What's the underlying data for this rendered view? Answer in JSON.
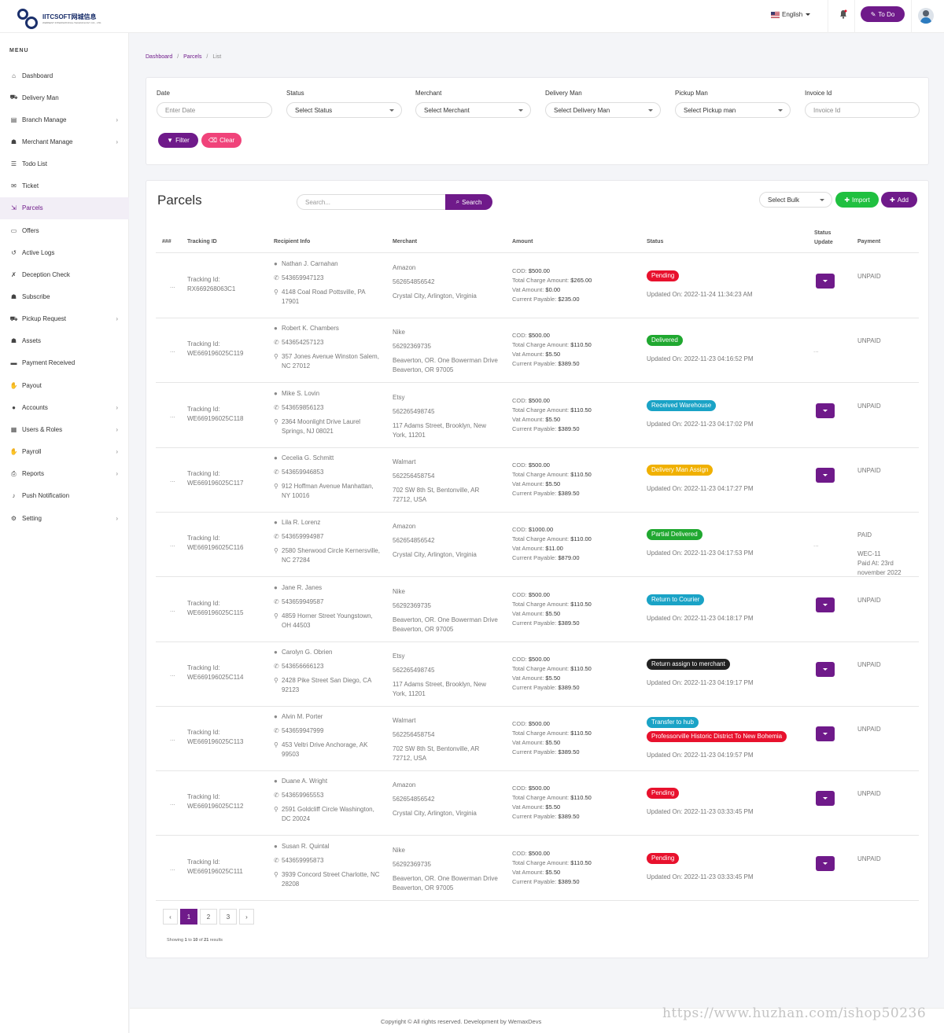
{
  "header": {
    "logo_name": "IITCSOFT网城信息",
    "logo_sub": "WEBNEST INTERNATIONAL TECHNOLOGY CO., LTD.",
    "language": "English",
    "todo_label": "To Do"
  },
  "sidebar": {
    "menu_label": "MENU",
    "items": [
      {
        "label": "Dashboard",
        "icon": "home-icon",
        "glyph": "⌂",
        "arrow": false
      },
      {
        "label": "Delivery Man",
        "icon": "delivery-man-icon",
        "glyph": "⛟",
        "arrow": false
      },
      {
        "label": "Branch Manage",
        "icon": "building-icon",
        "glyph": "▤",
        "arrow": true
      },
      {
        "label": "Merchant Manage",
        "icon": "users-icon",
        "glyph": "☗",
        "arrow": true
      },
      {
        "label": "Todo List",
        "icon": "list-icon",
        "glyph": "☰",
        "arrow": false
      },
      {
        "label": "Ticket",
        "icon": "comments-icon",
        "glyph": "✉",
        "arrow": false
      },
      {
        "label": "Parcels",
        "icon": "dolly-icon",
        "glyph": "⇲",
        "arrow": false
      },
      {
        "label": "Offers",
        "icon": "offer-icon",
        "glyph": "▭",
        "arrow": false
      },
      {
        "label": "Active Logs",
        "icon": "history-icon",
        "glyph": "↺",
        "arrow": false
      },
      {
        "label": "Deception Check",
        "icon": "user-times-icon",
        "glyph": "✗",
        "arrow": false
      },
      {
        "label": "Subscribe",
        "icon": "users-group-icon",
        "glyph": "☗",
        "arrow": false
      },
      {
        "label": "Pickup Request",
        "icon": "truck-icon",
        "glyph": "⛟",
        "arrow": true
      },
      {
        "label": "Assets",
        "icon": "users-group-icon",
        "glyph": "☗",
        "arrow": false
      },
      {
        "label": "Payment Received",
        "icon": "payment-icon",
        "glyph": "▬",
        "arrow": false
      },
      {
        "label": "Payout",
        "icon": "hand-coin-icon",
        "glyph": "✋",
        "arrow": false
      },
      {
        "label": "Accounts",
        "icon": "user-icon",
        "glyph": "●",
        "arrow": true
      },
      {
        "label": "Users & Roles",
        "icon": "grid-icon",
        "glyph": "▦",
        "arrow": true
      },
      {
        "label": "Payroll",
        "icon": "hand-coin-icon",
        "glyph": "✋",
        "arrow": true
      },
      {
        "label": "Reports",
        "icon": "print-icon",
        "glyph": "⎙",
        "arrow": true
      },
      {
        "label": "Push Notification",
        "icon": "bell-icon",
        "glyph": "♪",
        "arrow": false
      },
      {
        "label": "Setting",
        "icon": "cogs-icon",
        "glyph": "⚙",
        "arrow": true
      }
    ]
  },
  "breadcrumb": {
    "dashboard": "Dashboard",
    "parcels": "Parcels",
    "list": "List"
  },
  "filters": {
    "date_label": "Date",
    "date_placeholder": "Enter Date",
    "status_label": "Status",
    "status_value": "Select Status",
    "merchant_label": "Merchant",
    "merchant_value": "Select Merchant",
    "delivery_label": "Delivery Man",
    "delivery_value": "Select Delivery Man",
    "pickup_label": "Pickup Man",
    "pickup_value": "Select Pickup man",
    "invoice_label": "Invoice Id",
    "invoice_placeholder": "Invoice Id",
    "filter_btn": "Filter",
    "clear_btn": "Clear"
  },
  "list": {
    "title": "Parcels",
    "search_placeholder": "Search...",
    "search_btn": "Search",
    "bulk_value": "Select Bulk",
    "import_btn": "Import",
    "add_btn": "Add",
    "columns": {
      "num": "###",
      "tracking": "Tracking ID",
      "recipient": "Recipient Info",
      "merchant": "Merchant",
      "amount": "Amount",
      "status": "Status",
      "status_update_1": "Status",
      "status_update_2": "Update",
      "payment": "Payment"
    }
  },
  "labels": {
    "tracking_id": "Tracking Id:",
    "cod": "COD:",
    "total_charge": "Total Charge Amount:",
    "vat": "Vat Amount:",
    "current_payable": "Current Payable:",
    "updated_on": "Updated On:",
    "dots": "...",
    "paid_at": "Paid At:"
  },
  "rows": [
    {
      "tracking": "RX669268063C1",
      "name": "Nathan J. Carnahan",
      "phone": "543659947123",
      "addr1": "4148 Coal Road Pottsville, PA",
      "addr2": "17901",
      "m_name": "Amazon",
      "m_phone": "562654856542",
      "m_addr1": "Crystal City, Arlington, Virginia",
      "m_addr2": "",
      "cod": "$500.00",
      "charge": "$265.00",
      "vat": "$0.00",
      "payable": "$235.00",
      "badges": [
        {
          "text": "Pending",
          "color": "#e8112d"
        }
      ],
      "updated": "2022-11-24 11:34:23 AM",
      "update_btn": true,
      "payment": "UNPAID",
      "pay2": "",
      "pay3": "",
      "pay4": ""
    },
    {
      "tracking": "WE669196025C119",
      "name": "Robert K. Chambers",
      "phone": "543654257123",
      "addr1": "357 Jones Avenue Winston Salem,",
      "addr2": "NC 27012",
      "m_name": "Nike",
      "m_phone": "56292369735",
      "m_addr1": "Beaverton, OR. One Bowerman Drive",
      "m_addr2": "Beaverton, OR 97005",
      "cod": "$500.00",
      "charge": "$110.50",
      "vat": "$5.50",
      "payable": "$389.50",
      "badges": [
        {
          "text": "Delivered",
          "color": "#20a830"
        }
      ],
      "updated": "2022-11-23 04:16:52 PM",
      "update_btn": false,
      "payment": "UNPAID",
      "pay2": "",
      "pay3": "",
      "pay4": ""
    },
    {
      "tracking": "WE669196025C118",
      "name": "Mike S. Lovin",
      "phone": "543659856123",
      "addr1": "2364 Moonlight Drive Laurel",
      "addr2": "Springs, NJ 08021",
      "m_name": "Etsy",
      "m_phone": "562265498745",
      "m_addr1": "117 Adams Street, Brooklyn, New",
      "m_addr2": "York, 11201",
      "cod": "$500.00",
      "charge": "$110.50",
      "vat": "$5.50",
      "payable": "$389.50",
      "badges": [
        {
          "text": "Received Warehouse",
          "color": "#1aa3c6"
        }
      ],
      "updated": "2022-11-23 04:17:02 PM",
      "update_btn": true,
      "payment": "UNPAID",
      "pay2": "",
      "pay3": "",
      "pay4": ""
    },
    {
      "tracking": "WE669196025C117",
      "name": "Cecelia G. Schmitt",
      "phone": "543659946853",
      "addr1": "912 Hoffman Avenue Manhattan,",
      "addr2": "NY 10016",
      "m_name": "Walmart",
      "m_phone": "562256458754",
      "m_addr1": "702 SW 8th St, Bentonville, AR",
      "m_addr2": "72712, USA",
      "cod": "$500.00",
      "charge": "$110.50",
      "vat": "$5.50",
      "payable": "$389.50",
      "badges": [
        {
          "text": "Delivery Man Assign",
          "color": "#f0b000"
        }
      ],
      "updated": "2022-11-23 04:17:27 PM",
      "update_btn": true,
      "payment": "UNPAID",
      "pay2": "",
      "pay3": "",
      "pay4": ""
    },
    {
      "tracking": "WE669196025C116",
      "name": "Lila R. Lorenz",
      "phone": "543659994987",
      "addr1": "2580 Sherwood Circle Kernersville,",
      "addr2": "NC 27284",
      "m_name": "Amazon",
      "m_phone": "562654856542",
      "m_addr1": "Crystal City, Arlington, Virginia",
      "m_addr2": "",
      "cod": "$1000.00",
      "charge": "$110.00",
      "vat": "$11.00",
      "payable": "$879.00",
      "badges": [
        {
          "text": "Partial Delivered",
          "color": "#20a830"
        }
      ],
      "updated": "2022-11-23 04:17:53 PM",
      "update_btn": false,
      "payment": "PAID",
      "pay2": "WEC-11",
      "pay3": "23rd",
      "pay4": "november 2022"
    },
    {
      "tracking": "WE669196025C115",
      "name": "Jane R. Janes",
      "phone": "543659949587",
      "addr1": "4859 Horner Street Youngstown,",
      "addr2": "OH 44503",
      "m_name": "Nike",
      "m_phone": "56292369735",
      "m_addr1": "Beaverton, OR. One Bowerman Drive",
      "m_addr2": "Beaverton, OR 97005",
      "cod": "$500.00",
      "charge": "$110.50",
      "vat": "$5.50",
      "payable": "$389.50",
      "badges": [
        {
          "text": "Return to Courier",
          "color": "#1aa3c6"
        }
      ],
      "updated": "2022-11-23 04:18:17 PM",
      "update_btn": true,
      "payment": "UNPAID",
      "pay2": "",
      "pay3": "",
      "pay4": ""
    },
    {
      "tracking": "WE669196025C114",
      "name": "Carolyn G. Obrien",
      "phone": "543656666123",
      "addr1": "2428 Pike Street San Diego, CA",
      "addr2": "92123",
      "m_name": "Etsy",
      "m_phone": "562265498745",
      "m_addr1": "117 Adams Street, Brooklyn, New",
      "m_addr2": "York, 11201",
      "cod": "$500.00",
      "charge": "$110.50",
      "vat": "$5.50",
      "payable": "$389.50",
      "badges": [
        {
          "text": "Return assign to merchant",
          "color": "#222222"
        }
      ],
      "updated": "2022-11-23 04:19:17 PM",
      "update_btn": true,
      "payment": "UNPAID",
      "pay2": "",
      "pay3": "",
      "pay4": ""
    },
    {
      "tracking": "WE669196025C113",
      "name": "Alvin M. Porter",
      "phone": "543659947999",
      "addr1": "453 Veltri Drive Anchorage, AK",
      "addr2": "99503",
      "m_name": "Walmart",
      "m_phone": "562256458754",
      "m_addr1": "702 SW 8th St, Bentonville, AR",
      "m_addr2": "72712, USA",
      "cod": "$500.00",
      "charge": "$110.50",
      "vat": "$5.50",
      "payable": "$389.50",
      "badges": [
        {
          "text": "Transfer to hub",
          "color": "#1aa3c6"
        },
        {
          "text": "Professorville Historic District To New Bohemia",
          "color": "#e8112d"
        }
      ],
      "updated": "2022-11-23 04:19:57 PM",
      "update_btn": true,
      "payment": "UNPAID",
      "pay2": "",
      "pay3": "",
      "pay4": ""
    },
    {
      "tracking": "WE669196025C112",
      "name": "Duane A. Wright",
      "phone": "543659965553",
      "addr1": "2591 Goldcliff Circle Washington,",
      "addr2": "DC 20024",
      "m_name": "Amazon",
      "m_phone": "562654856542",
      "m_addr1": "Crystal City, Arlington, Virginia",
      "m_addr2": "",
      "cod": "$500.00",
      "charge": "$110.50",
      "vat": "$5.50",
      "payable": "$389.50",
      "badges": [
        {
          "text": "Pending",
          "color": "#e8112d"
        }
      ],
      "updated": "2022-11-23 03:33:45 PM",
      "update_btn": true,
      "payment": "UNPAID",
      "pay2": "",
      "pay3": "",
      "pay4": ""
    },
    {
      "tracking": "WE669196025C111",
      "name": "Susan R. Quintal",
      "phone": "543659995873",
      "addr1": "3939 Concord Street Charlotte, NC",
      "addr2": "28208",
      "m_name": "Nike",
      "m_phone": "56292369735",
      "m_addr1": "Beaverton, OR. One Bowerman Drive",
      "m_addr2": "Beaverton, OR 97005",
      "cod": "$500.00",
      "charge": "$110.50",
      "vat": "$5.50",
      "payable": "$389.50",
      "badges": [
        {
          "text": "Pending",
          "color": "#e8112d"
        }
      ],
      "updated": "2022-11-23 03:33:45 PM",
      "update_btn": true,
      "payment": "UNPAID",
      "pay2": "",
      "pay3": "",
      "pay4": ""
    }
  ],
  "pagination": {
    "prev": "‹",
    "next": "›",
    "pages": [
      "1",
      "2",
      "3"
    ],
    "current": "1",
    "showing_prefix": "Showing",
    "from": "1",
    "to_word": "to",
    "to": "10",
    "of_word": "of",
    "total": "21",
    "results_word": "results"
  },
  "footer": {
    "text": "Copyright © All rights reserved. Development by WemaxDevs"
  },
  "watermark": "https://www.huzhan.com/ishop50236",
  "colors": {
    "accent": "#6f1a8a",
    "import": "#20c040",
    "clear": "#f0437a"
  }
}
